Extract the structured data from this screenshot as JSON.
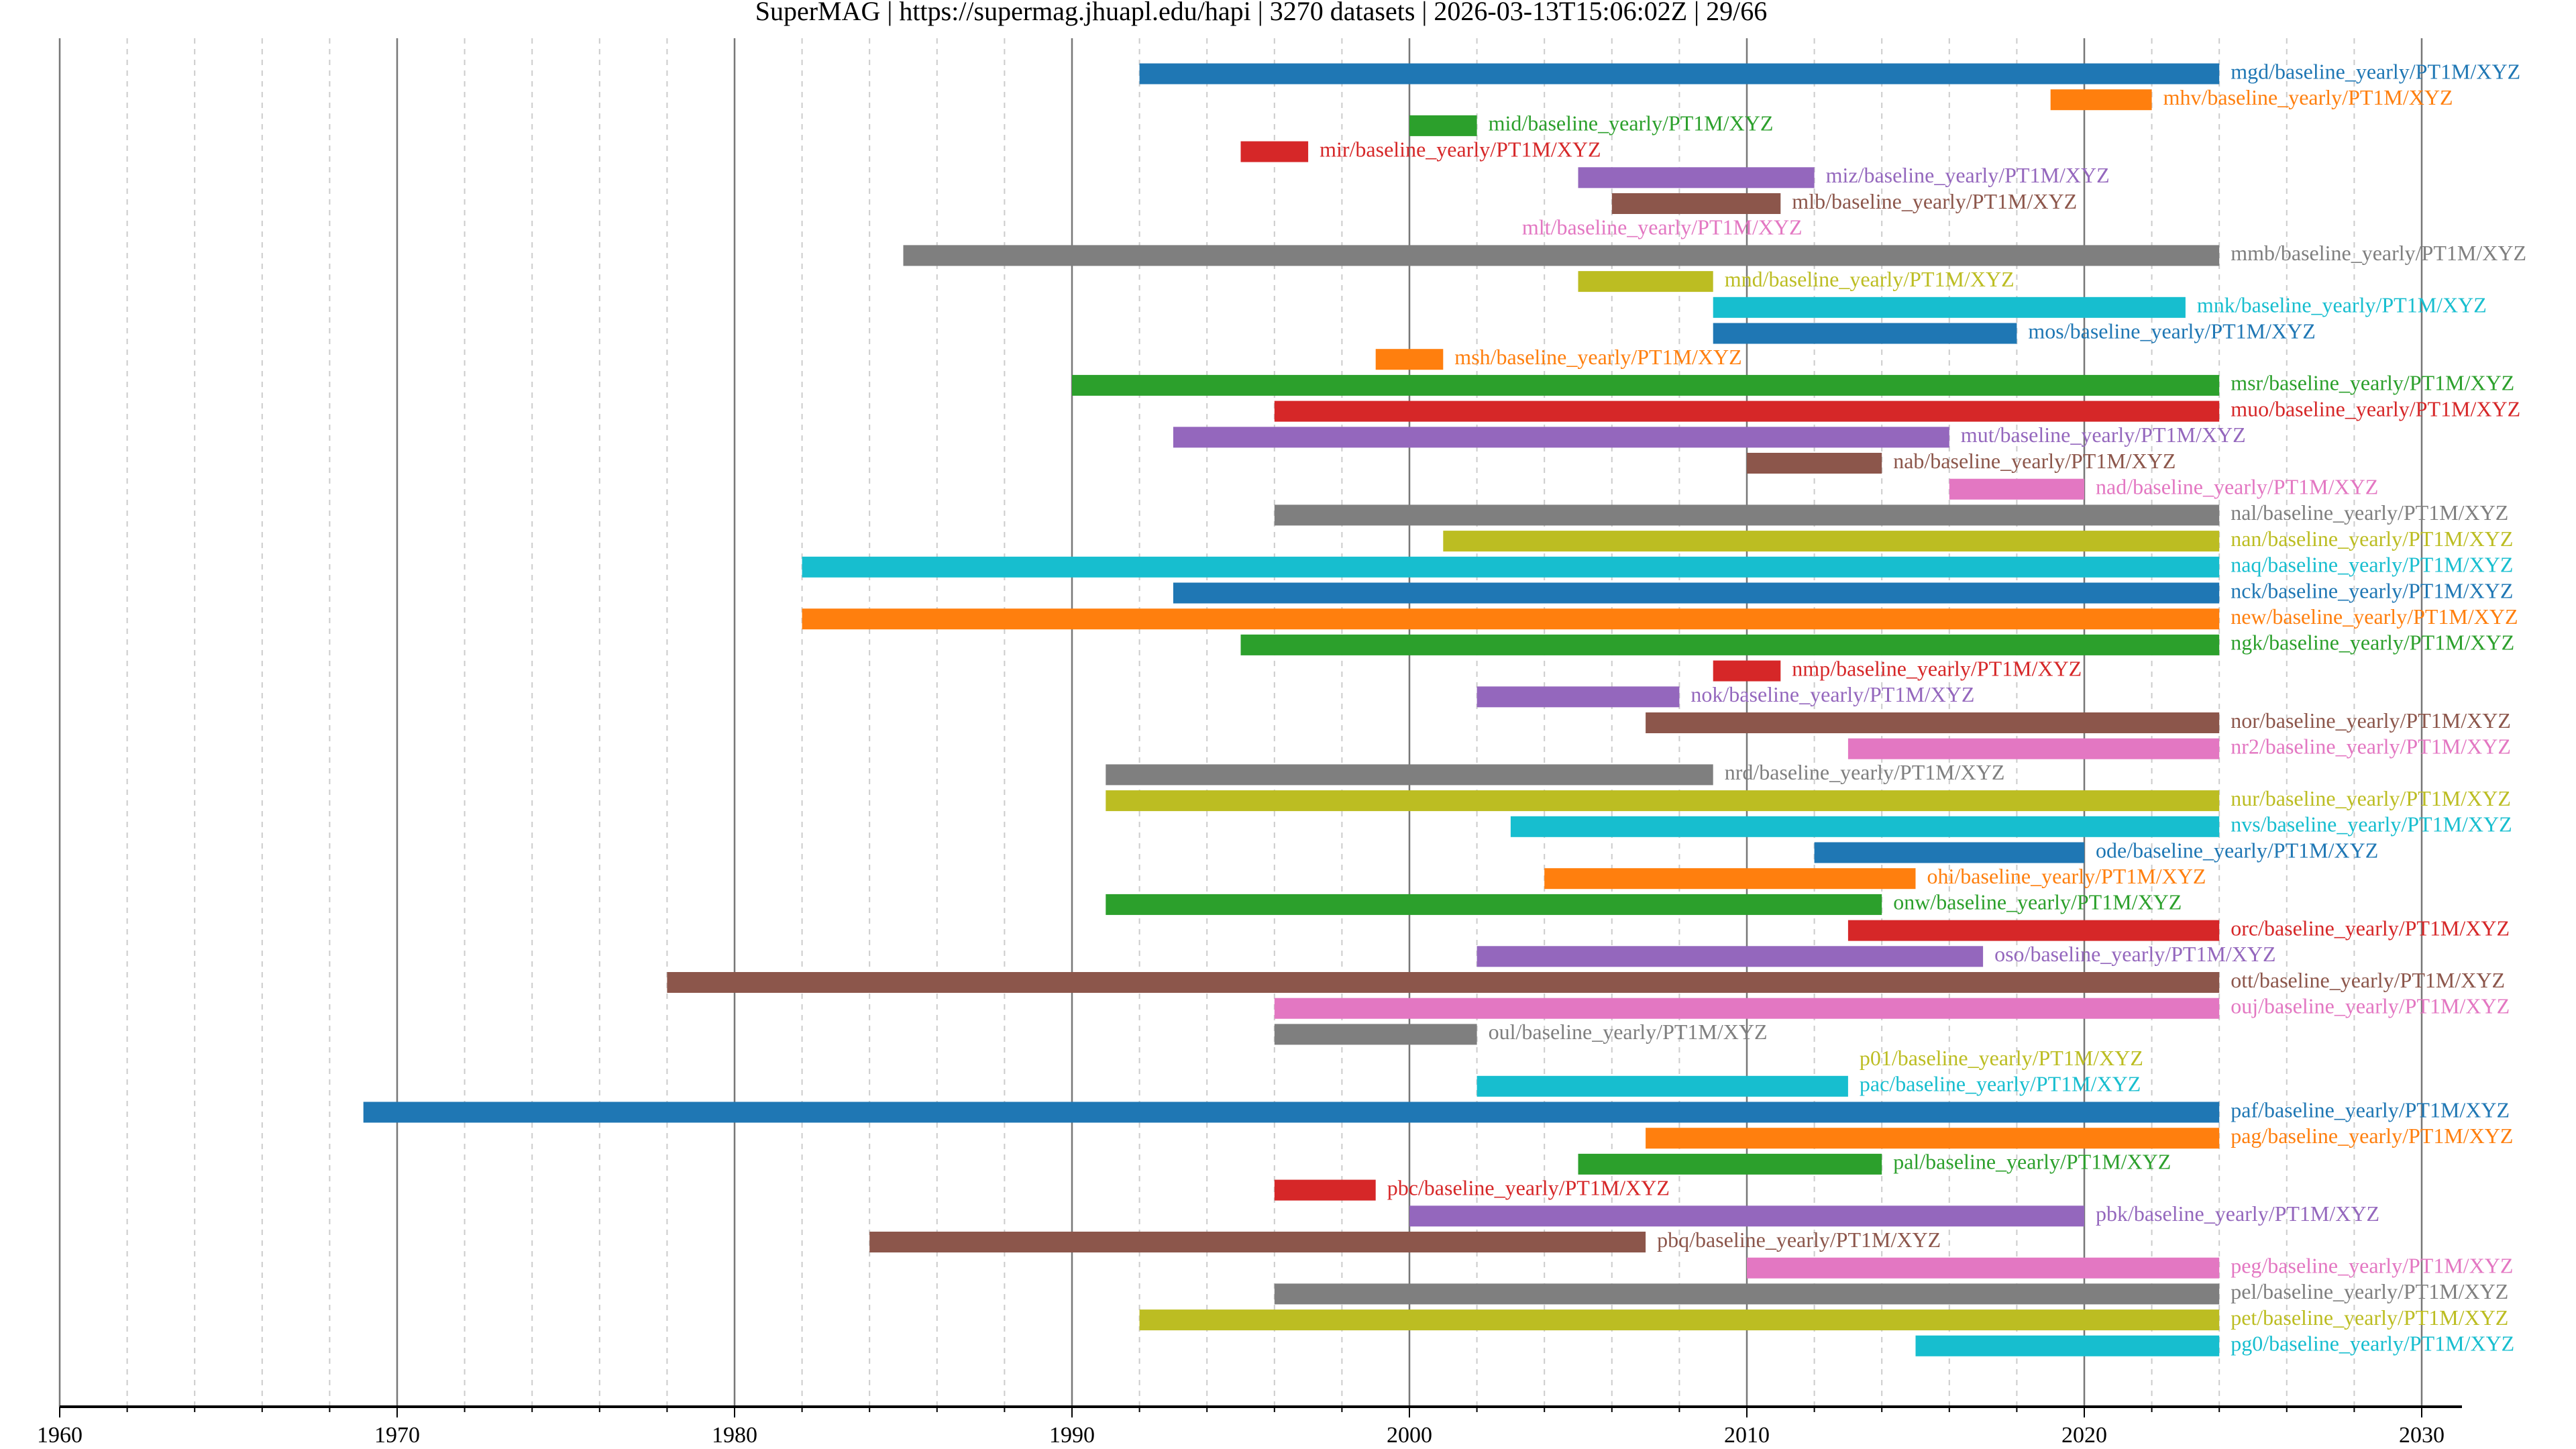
{
  "chart_data": {
    "type": "bar",
    "orientation": "horizontal-timeline",
    "title": "SuperMAG | https://supermag.jhuapl.edu/hapi | 3270 datasets | 2026-03-13T15:06:02Z | 29/66",
    "xlabel": "",
    "ylabel": "",
    "xlim": [
      1960,
      2031
    ],
    "xticks": [
      "1960",
      "1970",
      "1980",
      "1990",
      "2000",
      "2010",
      "2020",
      "2030"
    ],
    "grid": "major solid every 10 years, minor dashed every 2 years",
    "colors": [
      "#1f77b4",
      "#ff7f0e",
      "#2ca02c",
      "#d62728",
      "#9467bd",
      "#8c564b",
      "#e377c2",
      "#7f7f7f",
      "#bcbd22",
      "#17becf"
    ],
    "series": [
      {
        "label": "mgd/baseline_yearly/PT1M/XYZ",
        "start": 1992,
        "end": 2024
      },
      {
        "label": "mhv/baseline_yearly/PT1M/XYZ",
        "start": 2019,
        "end": 2022
      },
      {
        "label": "mid/baseline_yearly/PT1M/XYZ",
        "start": 2000,
        "end": 2002
      },
      {
        "label": "mir/baseline_yearly/PT1M/XYZ",
        "start": 1995,
        "end": 1997
      },
      {
        "label": "miz/baseline_yearly/PT1M/XYZ",
        "start": 2005,
        "end": 2012
      },
      {
        "label": "mlb/baseline_yearly/PT1M/XYZ",
        "start": 2006,
        "end": 2011
      },
      {
        "label": "mlt/baseline_yearly/PT1M/XYZ",
        "start": 2003,
        "end": 2003
      },
      {
        "label": "mmb/baseline_yearly/PT1M/XYZ",
        "start": 1985,
        "end": 2024
      },
      {
        "label": "mnd/baseline_yearly/PT1M/XYZ",
        "start": 2005,
        "end": 2009
      },
      {
        "label": "mnk/baseline_yearly/PT1M/XYZ",
        "start": 2009,
        "end": 2023
      },
      {
        "label": "mos/baseline_yearly/PT1M/XYZ",
        "start": 2009,
        "end": 2018
      },
      {
        "label": "msh/baseline_yearly/PT1M/XYZ",
        "start": 1999,
        "end": 2001
      },
      {
        "label": "msr/baseline_yearly/PT1M/XYZ",
        "start": 1990,
        "end": 2024
      },
      {
        "label": "muo/baseline_yearly/PT1M/XYZ",
        "start": 1996,
        "end": 2024
      },
      {
        "label": "mut/baseline_yearly/PT1M/XYZ",
        "start": 1993,
        "end": 2016
      },
      {
        "label": "nab/baseline_yearly/PT1M/XYZ",
        "start": 2010,
        "end": 2014
      },
      {
        "label": "nad/baseline_yearly/PT1M/XYZ",
        "start": 2016,
        "end": 2020
      },
      {
        "label": "nal/baseline_yearly/PT1M/XYZ",
        "start": 1996,
        "end": 2024
      },
      {
        "label": "nan/baseline_yearly/PT1M/XYZ",
        "start": 2001,
        "end": 2024
      },
      {
        "label": "naq/baseline_yearly/PT1M/XYZ",
        "start": 1982,
        "end": 2024
      },
      {
        "label": "nck/baseline_yearly/PT1M/XYZ",
        "start": 1993,
        "end": 2024
      },
      {
        "label": "new/baseline_yearly/PT1M/XYZ",
        "start": 1982,
        "end": 2024
      },
      {
        "label": "ngk/baseline_yearly/PT1M/XYZ",
        "start": 1995,
        "end": 2024
      },
      {
        "label": "nmp/baseline_yearly/PT1M/XYZ",
        "start": 2009,
        "end": 2011
      },
      {
        "label": "nok/baseline_yearly/PT1M/XYZ",
        "start": 2002,
        "end": 2008
      },
      {
        "label": "nor/baseline_yearly/PT1M/XYZ",
        "start": 2007,
        "end": 2024
      },
      {
        "label": "nr2/baseline_yearly/PT1M/XYZ",
        "start": 2013,
        "end": 2024
      },
      {
        "label": "nrd/baseline_yearly/PT1M/XYZ",
        "start": 1991,
        "end": 2009
      },
      {
        "label": "nur/baseline_yearly/PT1M/XYZ",
        "start": 1991,
        "end": 2024
      },
      {
        "label": "nvs/baseline_yearly/PT1M/XYZ",
        "start": 2003,
        "end": 2024
      },
      {
        "label": "ode/baseline_yearly/PT1M/XYZ",
        "start": 2012,
        "end": 2020
      },
      {
        "label": "ohi/baseline_yearly/PT1M/XYZ",
        "start": 2004,
        "end": 2015
      },
      {
        "label": "onw/baseline_yearly/PT1M/XYZ",
        "start": 1991,
        "end": 2014
      },
      {
        "label": "orc/baseline_yearly/PT1M/XYZ",
        "start": 2013,
        "end": 2024
      },
      {
        "label": "oso/baseline_yearly/PT1M/XYZ",
        "start": 2002,
        "end": 2017
      },
      {
        "label": "ott/baseline_yearly/PT1M/XYZ",
        "start": 1978,
        "end": 2024
      },
      {
        "label": "ouj/baseline_yearly/PT1M/XYZ",
        "start": 1996,
        "end": 2024
      },
      {
        "label": "oul/baseline_yearly/PT1M/XYZ",
        "start": 1996,
        "end": 2002
      },
      {
        "label": "p01/baseline_yearly/PT1M/XYZ",
        "start": 2013,
        "end": 2013
      },
      {
        "label": "pac/baseline_yearly/PT1M/XYZ",
        "start": 2002,
        "end": 2013
      },
      {
        "label": "paf/baseline_yearly/PT1M/XYZ",
        "start": 1969,
        "end": 2024
      },
      {
        "label": "pag/baseline_yearly/PT1M/XYZ",
        "start": 2007,
        "end": 2024
      },
      {
        "label": "pal/baseline_yearly/PT1M/XYZ",
        "start": 2005,
        "end": 2014
      },
      {
        "label": "pbc/baseline_yearly/PT1M/XYZ",
        "start": 1996,
        "end": 1999
      },
      {
        "label": "pbk/baseline_yearly/PT1M/XYZ",
        "start": 2000,
        "end": 2020
      },
      {
        "label": "pbq/baseline_yearly/PT1M/XYZ",
        "start": 1984,
        "end": 2007
      },
      {
        "label": "peg/baseline_yearly/PT1M/XYZ",
        "start": 2010,
        "end": 2024
      },
      {
        "label": "pel/baseline_yearly/PT1M/XYZ",
        "start": 1996,
        "end": 2024
      },
      {
        "label": "pet/baseline_yearly/PT1M/XYZ",
        "start": 1992,
        "end": 2024
      },
      {
        "label": "pg0/baseline_yearly/PT1M/XYZ",
        "start": 2015,
        "end": 2024
      }
    ]
  }
}
